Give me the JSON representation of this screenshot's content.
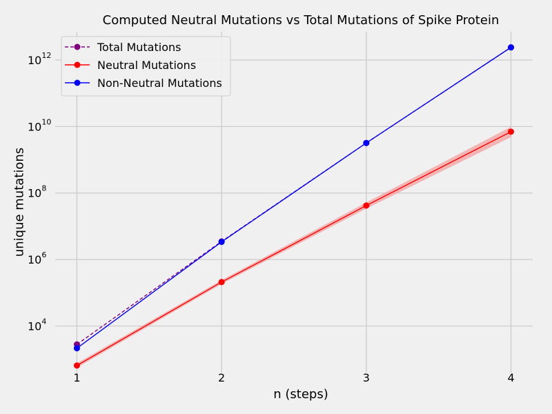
{
  "chart_data": {
    "type": "line",
    "title": "Computed Neutral Mutations vs Total Mutations of Spike Protein",
    "xlabel": "n (steps)",
    "ylabel": "unique mutations",
    "x": [
      1,
      2,
      3,
      4
    ],
    "xlim": [
      0.85,
      4.15
    ],
    "ylim_log10": [
      2.6,
      12.85
    ],
    "yscale": "log",
    "ytick_base": "10",
    "yticks_exp": [
      "4",
      "6",
      "8",
      "10",
      "12"
    ],
    "xtick_labels": [
      "1",
      "2",
      "3",
      "4"
    ],
    "grid": true,
    "legend_position": "top-left",
    "series": [
      {
        "name": "Total Mutations",
        "values": [
          2800,
          3500000,
          3200000000,
          2400000000000
        ],
        "color": "#800080",
        "style": "dashed",
        "marker": "circle"
      },
      {
        "name": "Neutral Mutations",
        "values": [
          650,
          210000,
          42000000,
          7000000000
        ],
        "color": "#ff0000",
        "style": "solid",
        "marker": "circle",
        "band_lower": [
          560,
          185000,
          34000000,
          4800000000
        ],
        "band_upper": [
          760,
          240000,
          52000000,
          9800000000
        ],
        "band_color": "#f4a0a0"
      },
      {
        "name": "Non-Neutral Mutations",
        "values": [
          2150,
          3400000,
          3200000000,
          2400000000000
        ],
        "color": "#0000ff",
        "style": "solid",
        "marker": "circle"
      }
    ]
  }
}
